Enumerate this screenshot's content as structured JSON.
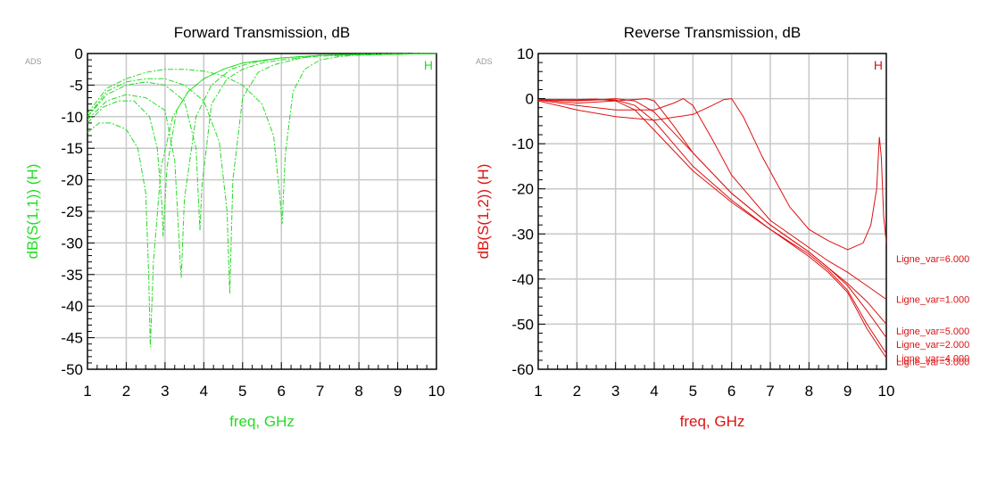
{
  "chart_data": [
    {
      "type": "line",
      "title": "Forward Transmission, dB",
      "xlabel": "freq, GHz",
      "ylabel": "dB(S(1,1))  (H)",
      "corner_label": "ADS",
      "marker_label": "H",
      "color": "#22dd22",
      "line_style": "dashed",
      "grid": true,
      "xlim": [
        1,
        10
      ],
      "ylim": [
        -50,
        0
      ],
      "xticks": [
        "1",
        "2",
        "3",
        "4",
        "5",
        "6",
        "7",
        "8",
        "9",
        "10"
      ],
      "yticks": [
        "0",
        "-5",
        "-10",
        "-15",
        "-20",
        "-25",
        "-30",
        "-35",
        "-40",
        "-45",
        "-50"
      ],
      "series": [
        {
          "x": [
            1,
            1.3,
            1.6,
            2,
            2.3,
            2.5,
            2.58,
            2.62,
            2.7,
            2.9,
            3.2,
            3.6,
            4,
            4.5,
            5,
            6,
            7,
            8,
            10
          ],
          "y": [
            -12.5,
            -11,
            -11,
            -12,
            -15,
            -22,
            -35,
            -46.5,
            -33,
            -18,
            -10,
            -6,
            -4,
            -2.5,
            -1.5,
            -0.7,
            -0.3,
            -0.1,
            0
          ]
        },
        {
          "x": [
            1,
            1.4,
            1.8,
            2.2,
            2.6,
            2.8,
            2.92,
            2.95,
            3.05,
            3.3,
            3.6,
            4,
            4.5,
            5,
            6,
            7,
            10
          ],
          "y": [
            -11,
            -8.5,
            -7.5,
            -7.5,
            -10,
            -15,
            -24,
            -29,
            -18,
            -9,
            -6,
            -4,
            -2.5,
            -1.5,
            -0.7,
            -0.3,
            0
          ]
        },
        {
          "x": [
            1,
            1.5,
            2,
            2.5,
            3,
            3.25,
            3.4,
            3.42,
            3.5,
            3.8,
            4.2,
            4.7,
            5.2,
            6,
            7,
            10
          ],
          "y": [
            -10.5,
            -7.5,
            -6.5,
            -7,
            -9,
            -17,
            -34,
            -35.5,
            -23,
            -10,
            -5,
            -2.5,
            -1.5,
            -0.7,
            -0.3,
            0
          ]
        },
        {
          "x": [
            1,
            1.5,
            2,
            2.5,
            3,
            3.5,
            3.8,
            3.9,
            3.95,
            4.2,
            4.6,
            5,
            5.5,
            6,
            7,
            10
          ],
          "y": [
            -10,
            -6.5,
            -5,
            -4.5,
            -5,
            -7.5,
            -15,
            -28,
            -21,
            -8,
            -4,
            -2.5,
            -1.5,
            -1,
            -0.4,
            0
          ]
        },
        {
          "x": [
            1,
            1.5,
            2,
            2.5,
            3,
            3.5,
            4,
            4.4,
            4.6,
            4.67,
            4.75,
            5,
            5.4,
            5.8,
            6.5,
            7,
            10
          ],
          "y": [
            -10,
            -6,
            -4.5,
            -4,
            -4,
            -5,
            -7.5,
            -14,
            -25,
            -38,
            -20,
            -7,
            -3,
            -1.8,
            -0.7,
            -0.3,
            0
          ]
        },
        {
          "x": [
            1,
            1.5,
            2,
            2.5,
            3,
            3.5,
            4,
            4.5,
            5,
            5.5,
            5.8,
            5.95,
            6.02,
            6.1,
            6.3,
            6.6,
            7,
            7.5,
            8,
            10
          ],
          "y": [
            -9.5,
            -5.5,
            -4,
            -3,
            -2.5,
            -2.5,
            -2.8,
            -3.5,
            -5,
            -8,
            -13,
            -22,
            -27,
            -16,
            -6,
            -2.5,
            -1,
            -0.5,
            -0.2,
            0
          ]
        }
      ]
    },
    {
      "type": "line",
      "title": "Reverse Transmission, dB",
      "xlabel": "freq, GHz",
      "ylabel": "dB(S(1,2))  (H)",
      "corner_label": "ADS",
      "marker_label": "H",
      "color": "#dd1111",
      "line_style": "solid",
      "grid": true,
      "xlim": [
        1,
        10
      ],
      "ylim": [
        -60,
        10
      ],
      "xticks": [
        "1",
        "2",
        "3",
        "4",
        "5",
        "6",
        "7",
        "8",
        "9",
        "10"
      ],
      "yticks": [
        "10",
        "0",
        "-10",
        "-20",
        "-30",
        "-40",
        "-50",
        "-60"
      ],
      "series": [
        {
          "name": "Ligne_var=6.000",
          "x": [
            1,
            2,
            3,
            4,
            5,
            5.5,
            5.8,
            6,
            6.3,
            6.8,
            7.5,
            8,
            8.5,
            9,
            9.4,
            9.6,
            9.75,
            9.82,
            9.87,
            9.93,
            10
          ],
          "y": [
            -0.5,
            -2.5,
            -4,
            -4.8,
            -3.5,
            -1.5,
            -0.2,
            0,
            -4,
            -13,
            -24,
            -29,
            -31.5,
            -33.5,
            -32,
            -28,
            -20,
            -8.5,
            -13,
            -26,
            -32
          ]
        },
        {
          "name": "Ligne_var=1.000",
          "x": [
            1,
            2,
            3,
            4,
            4.5,
            4.75,
            5,
            5.5,
            6,
            7,
            8,
            8.5,
            9,
            9.5,
            10
          ],
          "y": [
            -0.3,
            -1.5,
            -2.5,
            -2.5,
            -1,
            0,
            -1.5,
            -9,
            -17,
            -27,
            -33,
            -36,
            -38.5,
            -41.5,
            -44.5
          ]
        },
        {
          "name": "Ligne_var=5.000",
          "x": [
            1,
            2,
            3,
            3.5,
            3.8,
            4,
            4.5,
            5,
            6,
            7,
            8,
            8.5,
            9,
            9.5,
            10
          ],
          "y": [
            -0.2,
            -1,
            -0.5,
            -0.2,
            0,
            -0.5,
            -6,
            -12,
            -21,
            -28,
            -34,
            -37.5,
            -41,
            -45,
            -50
          ]
        },
        {
          "name": "Ligne_var=2.000",
          "x": [
            1,
            2,
            2.5,
            3,
            3.5,
            4,
            5,
            6,
            7,
            8,
            8.5,
            9,
            9.5,
            10
          ],
          "y": [
            -0.2,
            -0.5,
            -0.3,
            0,
            -0.5,
            -3,
            -12,
            -21,
            -28,
            -34,
            -37.5,
            -41.5,
            -47,
            -53
          ]
        },
        {
          "name": "Ligne_var=4.000",
          "x": [
            1,
            2,
            2.5,
            3,
            3.5,
            4,
            5,
            6,
            7,
            8,
            8.5,
            9,
            9.5,
            10
          ],
          "y": [
            -0.2,
            -0.3,
            -0.2,
            -0.3,
            -1.5,
            -5,
            -15,
            -22.5,
            -29,
            -34.5,
            -38,
            -42.5,
            -50,
            -56.5
          ]
        },
        {
          "name": "Ligne_var=3.000",
          "x": [
            1,
            2,
            2.5,
            3,
            3.5,
            4,
            5,
            6,
            7,
            8,
            8.5,
            9,
            9.5,
            10
          ],
          "y": [
            -0.2,
            -0.2,
            -0.1,
            -0.5,
            -2.5,
            -7,
            -16,
            -23,
            -29,
            -35,
            -38.5,
            -43,
            -51,
            -57.5
          ]
        }
      ],
      "legend": [
        {
          "label": "Ligne_var=6.000",
          "at": -35.5
        },
        {
          "label": "Ligne_var=1.000",
          "at": -44.5
        },
        {
          "label": "Ligne_var=5.000",
          "at": -51.5
        },
        {
          "label": "Ligne_var=2.000",
          "at": -54.5
        },
        {
          "label": "Ligne_var=4.000",
          "at": -57.5
        },
        {
          "label": "Ligne_var=3.000",
          "at": -58.3
        }
      ]
    }
  ]
}
